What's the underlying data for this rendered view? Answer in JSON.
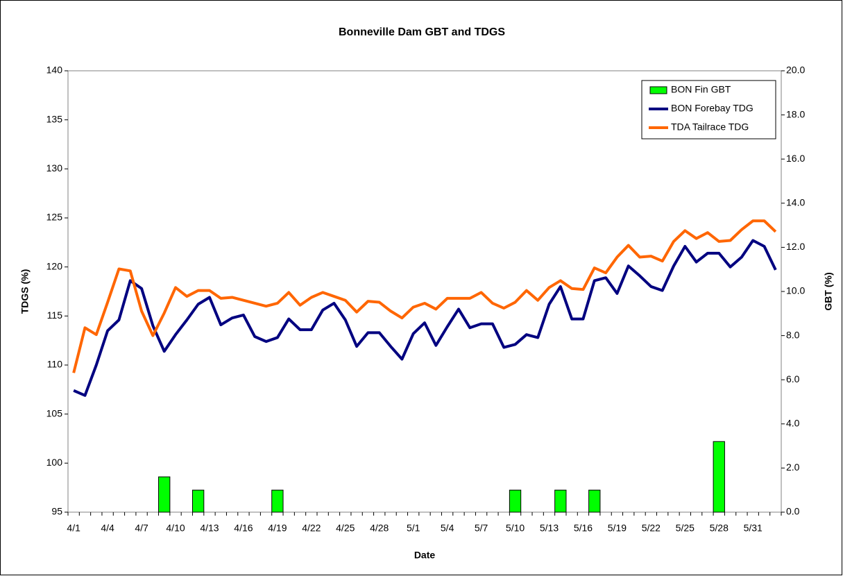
{
  "chart_data": {
    "type": "combo",
    "title": "Bonneville Dam GBT and TDGS",
    "x_label": "Date",
    "y_label": "TDGS (%)",
    "y2_label": "GBT (%)",
    "categories": [
      "4/1",
      null,
      null,
      "4/4",
      null,
      null,
      "4/7",
      null,
      null,
      "4/10",
      null,
      null,
      "4/13",
      null,
      null,
      "4/16",
      null,
      null,
      "4/19",
      null,
      null,
      "4/22",
      null,
      null,
      "4/25",
      null,
      null,
      "4/28",
      null,
      null,
      "5/1",
      null,
      null,
      "5/4",
      null,
      null,
      "5/7",
      null,
      null,
      "5/10",
      null,
      null,
      "5/13",
      null,
      null,
      "5/16",
      null,
      null,
      "5/19",
      null,
      null,
      "5/22",
      null,
      null,
      "5/25",
      null,
      null,
      "5/28",
      null,
      null,
      "5/31",
      null,
      null
    ],
    "ylim": [
      95,
      140
    ],
    "yticks": [
      95,
      100,
      105,
      110,
      115,
      120,
      125,
      130,
      135,
      140
    ],
    "y2lim": [
      0,
      20
    ],
    "y2ticks": [
      {
        "value": 0,
        "label": "0.0"
      },
      {
        "value": 2,
        "label": "2.0"
      },
      {
        "value": 4,
        "label": "4.0"
      },
      {
        "value": 6,
        "label": "6.0"
      },
      {
        "value": 8,
        "label": "8.0"
      },
      {
        "value": 10,
        "label": "10.0"
      },
      {
        "value": 12,
        "label": "12.0"
      },
      {
        "value": 14,
        "label": "14.0"
      },
      {
        "value": 16,
        "label": "16.0"
      },
      {
        "value": 18,
        "label": "18.0"
      },
      {
        "value": 20,
        "label": "20.0"
      }
    ],
    "grid": false,
    "legend": "upper right",
    "series": [
      {
        "name": "BON Fin GBT",
        "type": "bar",
        "axis": "y2",
        "color": "#00ff00",
        "values": [
          null,
          null,
          null,
          null,
          null,
          null,
          null,
          null,
          1.6,
          null,
          null,
          1.0,
          null,
          null,
          null,
          null,
          null,
          null,
          1.0,
          null,
          null,
          null,
          null,
          null,
          null,
          null,
          null,
          null,
          null,
          null,
          null,
          null,
          null,
          null,
          null,
          null,
          null,
          null,
          null,
          1.0,
          null,
          null,
          null,
          1.0,
          null,
          null,
          1.0,
          null,
          null,
          null,
          null,
          null,
          null,
          null,
          null,
          null,
          null,
          3.2,
          null,
          null,
          null,
          null,
          null
        ]
      },
      {
        "name": "BON Forebay TDG",
        "type": "line",
        "color": "#000080",
        "values": [
          107.4,
          106.9,
          110,
          113.5,
          114.6,
          118.6,
          117.8,
          114,
          111.4,
          113.1,
          114.6,
          116.2,
          116.9,
          114.1,
          114.8,
          115.1,
          112.9,
          112.4,
          112.8,
          114.7,
          113.6,
          113.6,
          115.6,
          116.3,
          114.6,
          111.9,
          113.3,
          113.3,
          111.9,
          110.6,
          113.2,
          114.3,
          112,
          113.9,
          115.7,
          113.8,
          114.2,
          114.2,
          111.8,
          112.1,
          113.1,
          112.8,
          116.2,
          118,
          114.7,
          114.7,
          118.6,
          118.9,
          117.3,
          120.1,
          119.1,
          118,
          117.6,
          120.1,
          122.1,
          120.5,
          121.4,
          121.4,
          120,
          121,
          122.7,
          122.1,
          119.7
        ]
      },
      {
        "name": "TDA Tailrace TDG",
        "type": "line",
        "color": "#ff6600",
        "values": [
          109.2,
          113.8,
          113.1,
          116.4,
          119.8,
          119.6,
          115.5,
          113,
          115.3,
          117.9,
          117,
          117.6,
          117.6,
          116.8,
          116.9,
          116.6,
          116.3,
          116,
          116.3,
          117.4,
          116.1,
          116.9,
          117.4,
          117,
          116.6,
          115.4,
          116.5,
          116.4,
          115.5,
          114.8,
          115.9,
          116.3,
          115.7,
          116.8,
          116.8,
          116.8,
          117.4,
          116.3,
          115.8,
          116.4,
          117.6,
          116.6,
          117.9,
          118.6,
          117.8,
          117.7,
          119.9,
          119.4,
          121,
          122.2,
          121,
          121.1,
          120.6,
          122.6,
          123.7,
          122.9,
          123.5,
          122.6,
          122.7,
          123.8,
          124.7,
          124.7,
          123.6
        ]
      }
    ]
  }
}
